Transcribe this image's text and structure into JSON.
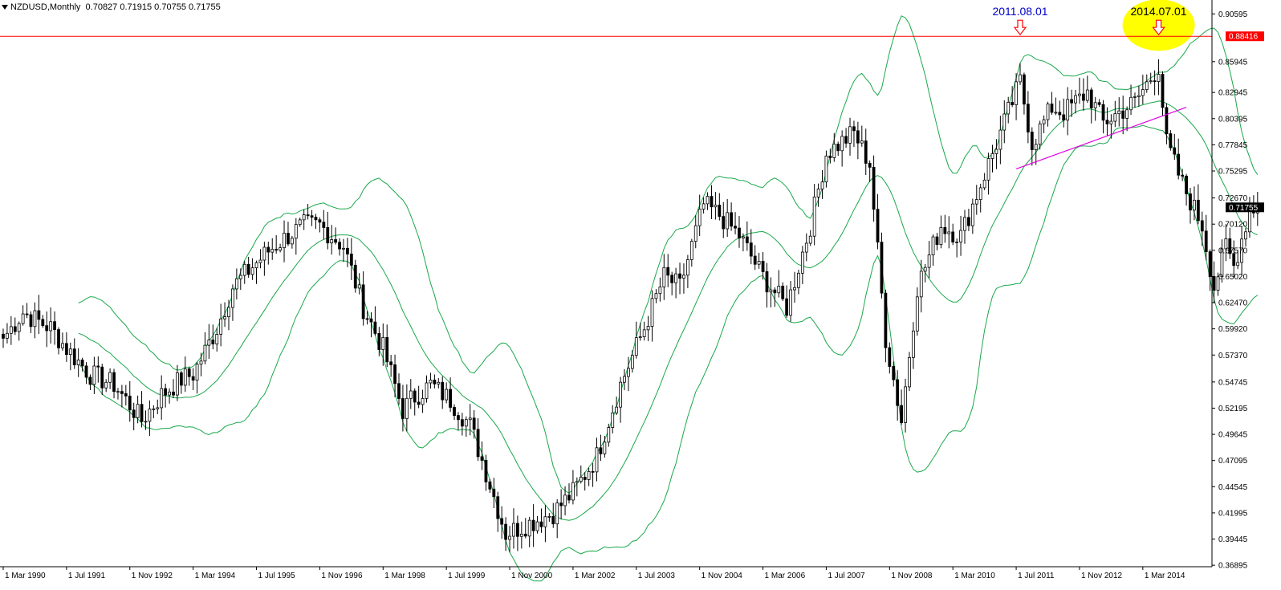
{
  "header": {
    "symbol": "NZDUSD,Monthly",
    "ohlc": "0.70827 0.71915 0.70755 0.71755"
  },
  "chart_data": {
    "type": "candlestick",
    "symbol": "NZDUSD",
    "timeframe": "Monthly",
    "ylim": [
      0.3675,
      0.9195
    ],
    "y_ticks": [
      "0.90595",
      "0.85945",
      "0.82945",
      "0.80395",
      "0.77845",
      "0.75295",
      "0.72670",
      "0.70120",
      "0.67570",
      "0.65020",
      "0.62470",
      "0.59920",
      "0.57370",
      "0.54745",
      "0.52195",
      "0.49645",
      "0.47095",
      "0.44545",
      "0.41995",
      "0.39445",
      "0.36895"
    ],
    "x_ticks": [
      "1 Mar 1990",
      "1 Jul 1991",
      "1 Nov 1992",
      "1 Mar 1994",
      "1 Jul 1995",
      "1 Nov 1996",
      "1 Mar 1998",
      "1 Jul 1999",
      "1 Nov 2000",
      "1 Mar 2002",
      "1 Jul 2003",
      "1 Nov 2004",
      "1 Mar 2006",
      "1 Jul 2007",
      "1 Nov 2008",
      "1 Mar 2010",
      "1 Jul 2011",
      "1 Nov 2012",
      "1 Mar 2014"
    ],
    "close_anchors": [
      [
        "1990-03",
        0.59
      ],
      [
        "1990-08",
        0.615
      ],
      [
        "1991-03",
        0.6
      ],
      [
        "1991-07",
        0.58
      ],
      [
        "1992-01",
        0.555
      ],
      [
        "1992-07",
        0.545
      ],
      [
        "1992-11",
        0.525
      ],
      [
        "1993-02",
        0.51
      ],
      [
        "1993-07",
        0.535
      ],
      [
        "1993-12",
        0.55
      ],
      [
        "1994-03",
        0.555
      ],
      [
        "1994-09",
        0.6
      ],
      [
        "1995-01",
        0.64
      ],
      [
        "1995-06",
        0.66
      ],
      [
        "1995-10",
        0.675
      ],
      [
        "1996-03",
        0.69
      ],
      [
        "1996-07",
        0.7
      ],
      [
        "1996-11",
        0.7
      ],
      [
        "1997-05",
        0.68
      ],
      [
        "1997-10",
        0.62
      ],
      [
        "1998-03",
        0.58
      ],
      [
        "1998-08",
        0.52
      ],
      [
        "1998-10",
        0.53
      ],
      [
        "1999-03",
        0.545
      ],
      [
        "1999-08",
        0.53
      ],
      [
        "2000-01",
        0.505
      ],
      [
        "2000-05",
        0.46
      ],
      [
        "2000-10",
        0.4
      ],
      [
        "2001-04",
        0.41
      ],
      [
        "2001-10",
        0.42
      ],
      [
        "2002-03",
        0.44
      ],
      [
        "2002-09",
        0.475
      ],
      [
        "2003-03",
        0.545
      ],
      [
        "2003-09",
        0.6
      ],
      [
        "2004-02",
        0.65
      ],
      [
        "2004-06",
        0.64
      ],
      [
        "2004-12",
        0.72
      ],
      [
        "2005-04",
        0.71
      ],
      [
        "2005-09",
        0.69
      ],
      [
        "2006-03",
        0.65
      ],
      [
        "2006-09",
        0.62
      ],
      [
        "2007-03",
        0.7
      ],
      [
        "2007-07",
        0.77
      ],
      [
        "2008-02",
        0.79
      ],
      [
        "2008-06",
        0.76
      ],
      [
        "2008-10",
        0.59
      ],
      [
        "2009-02",
        0.51
      ],
      [
        "2009-06",
        0.64
      ],
      [
        "2009-12",
        0.7
      ],
      [
        "2010-05",
        0.69
      ],
      [
        "2010-10",
        0.74
      ],
      [
        "2011-03",
        0.79
      ],
      [
        "2011-08",
        0.84
      ],
      [
        "2011-11",
        0.78
      ],
      [
        "2012-04",
        0.815
      ],
      [
        "2012-07",
        0.81
      ],
      [
        "2013-01",
        0.83
      ],
      [
        "2013-05",
        0.8
      ],
      [
        "2013-09",
        0.81
      ],
      [
        "2014-01",
        0.82
      ],
      [
        "2014-07",
        0.855
      ],
      [
        "2014-09",
        0.78
      ],
      [
        "2015-01",
        0.74
      ],
      [
        "2015-06",
        0.7
      ],
      [
        "2015-09",
        0.64
      ],
      [
        "2015-12",
        0.68
      ],
      [
        "2016-02",
        0.66
      ],
      [
        "2016-06",
        0.715
      ],
      [
        "2016-08",
        0.7175
      ]
    ],
    "bands": {
      "period": 20,
      "deviations": 2,
      "color": "#1aa84a"
    },
    "horizontal_line": {
      "price": 0.88416,
      "label": "0.88416",
      "color": "#ff0000"
    },
    "current_price": {
      "price": 0.71755,
      "label": "0.71755"
    },
    "trendline": {
      "from": [
        "2011-07",
        0.755
      ],
      "to": [
        "2015-02",
        0.815
      ],
      "color": "#e000e0"
    },
    "annotations": [
      {
        "text": "2011.08.01",
        "date": "2011-08",
        "color": "#0000cc",
        "highlight": false
      },
      {
        "text": "2014.07.01",
        "date": "2014-07",
        "color": "#000000",
        "highlight": true
      }
    ],
    "colors": {
      "candle": "#000000",
      "arrow": "#ff0000",
      "highlight": "#ffff00"
    }
  }
}
